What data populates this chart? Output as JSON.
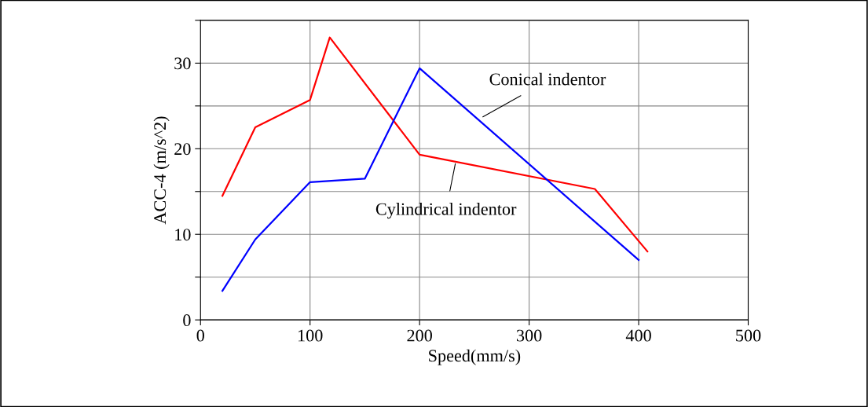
{
  "chart_data": {
    "type": "line",
    "xlabel": "Speed(mm/s)",
    "ylabel": "ACC-4 (m/s^2)",
    "xlim": [
      0,
      500
    ],
    "xticks": [
      0,
      100,
      200,
      300,
      400,
      500
    ],
    "ylim": [
      0,
      35
    ],
    "yticks": [
      0,
      {
        "value": 5,
        "label": null
      },
      10,
      {
        "value": 15,
        "label": null
      },
      20,
      {
        "value": 25,
        "label": null
      },
      30,
      {
        "value": 35,
        "label": null
      }
    ],
    "grid": true,
    "legend": false,
    "marker": "none",
    "line_style": "solid",
    "series": [
      {
        "color": "#ff0000",
        "x": [
          20,
          50,
          100,
          118,
          200,
          360,
          408
        ],
        "values": [
          14.5,
          22.5,
          25.7,
          33.0,
          19.3,
          15.3,
          8.0
        ]
      },
      {
        "color": "#0000ff",
        "x": [
          20,
          50,
          100,
          150,
          200,
          400
        ],
        "values": [
          3.4,
          9.4,
          16.1,
          16.5,
          29.4,
          7.0
        ]
      }
    ],
    "annotations": [
      {
        "text": "Conical indentor",
        "x": 256,
        "y": 23.6
      },
      {
        "text": "Cylindrical indentor",
        "x": 233,
        "y": 18.5
      }
    ]
  }
}
